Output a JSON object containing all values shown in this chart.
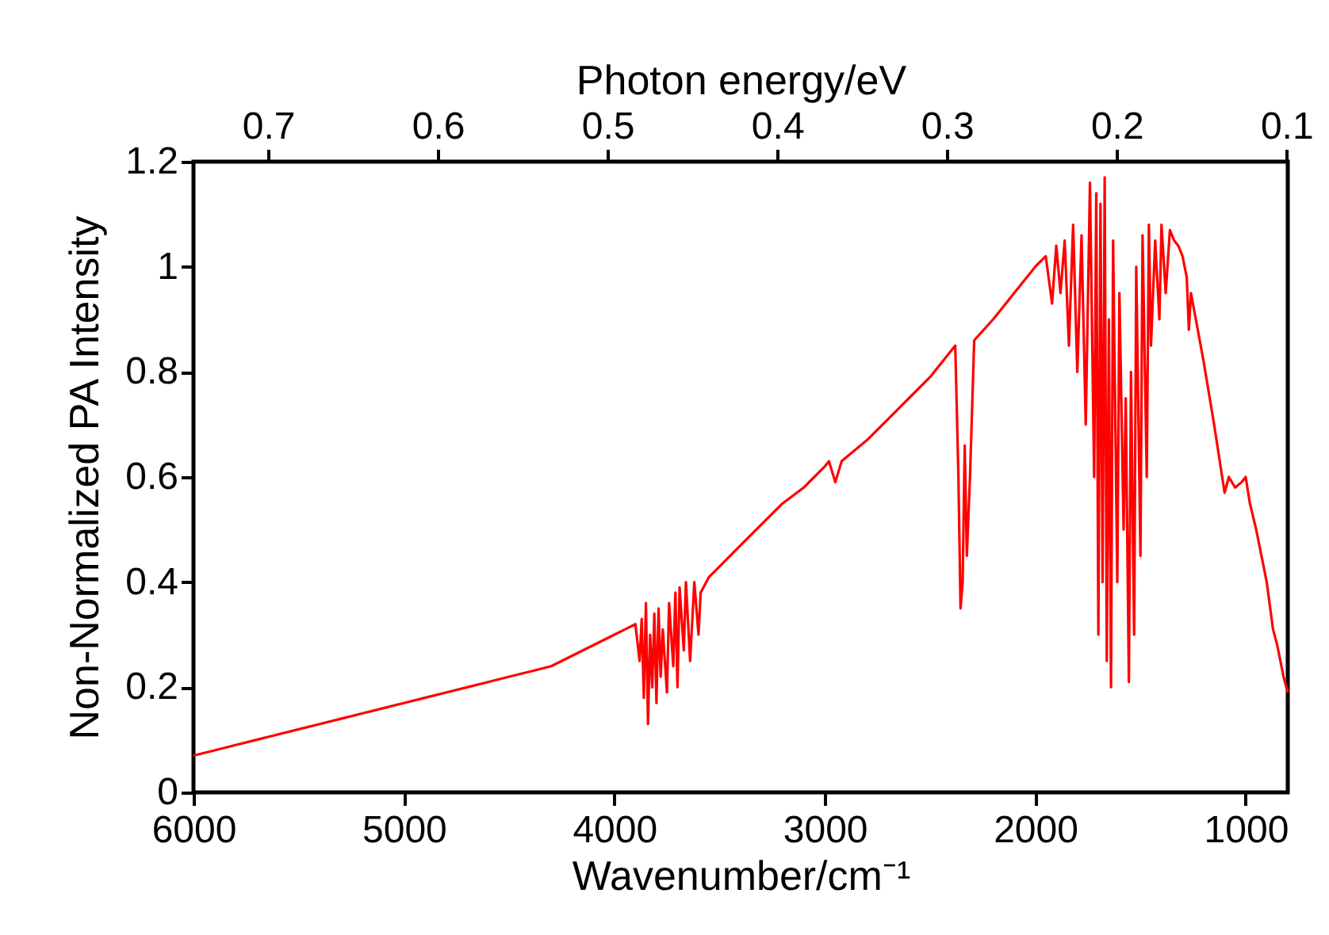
{
  "chart_data": {
    "type": "line",
    "xlabel": "Wavenumber/cm⁻¹",
    "ylabel": "Non-Normalized PA Intensity",
    "x2label": "Photon energy/eV",
    "xlim": [
      6000,
      800
    ],
    "xticks": [
      6000,
      5000,
      4000,
      3000,
      2000,
      1000
    ],
    "x2lim": [
      0.744,
      0.0992
    ],
    "x2ticks": [
      0.7,
      0.6,
      0.5,
      0.4,
      0.3,
      0.2,
      0.1
    ],
    "ylim": [
      0,
      1.2
    ],
    "yticks": [
      0,
      0.2,
      0.4,
      0.6,
      0.8,
      1,
      1.2
    ],
    "grid": false,
    "marker": "none",
    "line_style": "solid",
    "x": [
      6000,
      5900,
      5800,
      5700,
      5600,
      5500,
      5400,
      5300,
      5200,
      5100,
      5000,
      4900,
      4800,
      4700,
      4600,
      4500,
      4400,
      4300,
      4200,
      4100,
      4000,
      3950,
      3900,
      3880,
      3870,
      3860,
      3850,
      3840,
      3830,
      3820,
      3810,
      3800,
      3790,
      3780,
      3770,
      3750,
      3740,
      3720,
      3710,
      3700,
      3690,
      3670,
      3660,
      3640,
      3620,
      3600,
      3590,
      3550,
      3500,
      3400,
      3300,
      3200,
      3100,
      3000,
      2980,
      2950,
      2920,
      2800,
      2700,
      2600,
      2500,
      2400,
      2380,
      2365,
      2355,
      2345,
      2335,
      2325,
      2310,
      2290,
      2200,
      2100,
      2000,
      1950,
      1920,
      1900,
      1880,
      1860,
      1840,
      1820,
      1800,
      1780,
      1760,
      1740,
      1720,
      1710,
      1700,
      1690,
      1680,
      1670,
      1660,
      1650,
      1640,
      1630,
      1610,
      1600,
      1580,
      1570,
      1555,
      1545,
      1530,
      1520,
      1500,
      1490,
      1470,
      1460,
      1450,
      1430,
      1410,
      1400,
      1380,
      1360,
      1340,
      1320,
      1300,
      1280,
      1270,
      1260,
      1200,
      1150,
      1100,
      1080,
      1050,
      1020,
      1000,
      980,
      950,
      900,
      870,
      850,
      820,
      800
    ],
    "series": [
      {
        "color": "#ff0000",
        "values": [
          0.07,
          0.08,
          0.09,
          0.1,
          0.11,
          0.12,
          0.13,
          0.14,
          0.15,
          0.16,
          0.17,
          0.18,
          0.19,
          0.2,
          0.21,
          0.22,
          0.23,
          0.24,
          0.26,
          0.28,
          0.3,
          0.31,
          0.32,
          0.25,
          0.33,
          0.18,
          0.36,
          0.13,
          0.3,
          0.2,
          0.34,
          0.17,
          0.35,
          0.22,
          0.31,
          0.19,
          0.36,
          0.24,
          0.38,
          0.2,
          0.39,
          0.27,
          0.4,
          0.25,
          0.4,
          0.3,
          0.38,
          0.41,
          0.43,
          0.47,
          0.51,
          0.55,
          0.58,
          0.62,
          0.63,
          0.59,
          0.63,
          0.67,
          0.71,
          0.75,
          0.79,
          0.84,
          0.85,
          0.6,
          0.35,
          0.4,
          0.66,
          0.45,
          0.6,
          0.86,
          0.9,
          0.95,
          1.0,
          1.02,
          0.93,
          1.04,
          0.95,
          1.05,
          0.85,
          1.08,
          0.8,
          1.06,
          0.7,
          1.16,
          0.6,
          1.14,
          0.3,
          1.12,
          0.4,
          1.17,
          0.25,
          0.9,
          0.2,
          1.05,
          0.4,
          0.95,
          0.5,
          0.75,
          0.21,
          0.8,
          0.3,
          1.0,
          0.45,
          1.06,
          0.6,
          1.08,
          0.85,
          1.05,
          0.9,
          1.08,
          0.95,
          1.07,
          1.05,
          1.04,
          1.02,
          0.98,
          0.88,
          0.95,
          0.82,
          0.7,
          0.57,
          0.6,
          0.58,
          0.59,
          0.6,
          0.55,
          0.5,
          0.4,
          0.31,
          0.28,
          0.22,
          0.19
        ]
      }
    ]
  }
}
